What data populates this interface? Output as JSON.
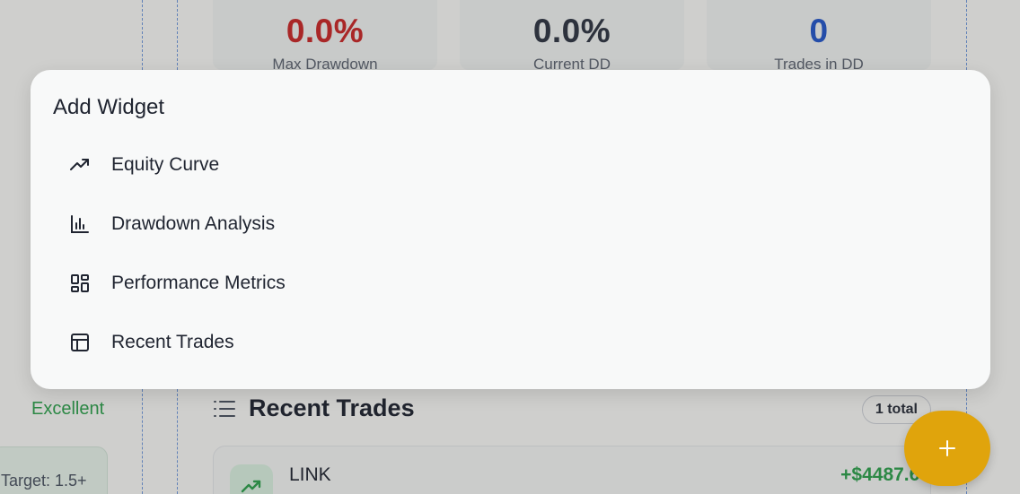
{
  "metrics": [
    {
      "value": "0.0%",
      "label": "Max Drawdown"
    },
    {
      "value": "0.0%",
      "label": "Current DD"
    },
    {
      "value": "0",
      "label": "Trades in DD"
    }
  ],
  "left_panel": {
    "status": "Excellent",
    "target": "Target: 1.5+"
  },
  "recent_trades": {
    "title": "Recent Trades",
    "badge": "1 total",
    "row": {
      "symbol": "LINK",
      "pnl": "+$4487.66"
    }
  },
  "menu": {
    "title": "Add Widget",
    "items": [
      {
        "label": "Equity Curve",
        "icon": "trending-up-icon"
      },
      {
        "label": "Drawdown Analysis",
        "icon": "bar-chart-icon"
      },
      {
        "label": "Performance Metrics",
        "icon": "dashboard-grid-icon"
      },
      {
        "label": "Recent Trades",
        "icon": "table-layout-icon"
      }
    ]
  },
  "fab": {
    "label": "+",
    "icon": "plus-icon"
  },
  "colors": {
    "accent": "#e0a40c",
    "negative": "#c62828",
    "positive": "#2e9e4c",
    "info": "#2456c6"
  }
}
